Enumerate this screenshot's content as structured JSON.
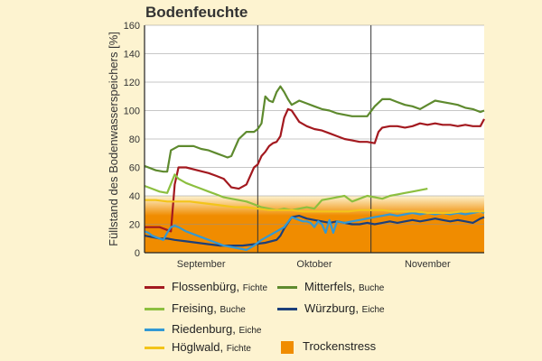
{
  "chart_data": {
    "type": "line",
    "title": "Bodenfeuchte",
    "ylabel": "Füllstand des Bodenwasserspeichers [%]",
    "xlabel": "",
    "ylim": [
      0,
      160
    ],
    "yticks": [
      "0",
      "20",
      "40",
      "60",
      "80",
      "100",
      "120",
      "140",
      "160"
    ],
    "months": [
      "September",
      "Oktober",
      "November"
    ],
    "stress_band": {
      "label": "Trockenstress",
      "low": 0,
      "high": 40,
      "color": "#f08c00"
    },
    "x_range": [
      1,
      91
    ],
    "series": [
      {
        "name": "Flossenbürg",
        "species": "Fichte",
        "color": "#a3191f",
        "x": [
          1,
          5,
          7,
          8,
          9,
          10,
          12,
          15,
          18,
          20,
          22,
          24,
          26,
          28,
          30,
          31,
          32,
          33,
          34,
          35,
          36,
          37,
          38,
          39,
          40,
          42,
          44,
          46,
          48,
          50,
          52,
          54,
          56,
          58,
          60,
          62,
          63,
          64,
          66,
          68,
          70,
          72,
          74,
          76,
          78,
          80,
          82,
          84,
          86,
          88,
          90,
          91
        ],
        "values": [
          18,
          18,
          16,
          15,
          48,
          60,
          60,
          58,
          56,
          54,
          52,
          46,
          45,
          48,
          60,
          62,
          68,
          71,
          75,
          77,
          78,
          82,
          95,
          101,
          100,
          92,
          89,
          87,
          86,
          84,
          82,
          80,
          79,
          78,
          78,
          77,
          85,
          88,
          89,
          89,
          88,
          89,
          91,
          90,
          91,
          90,
          90,
          89,
          90,
          89,
          89,
          94
        ]
      },
      {
        "name": "Mitterfels",
        "species": "Buche",
        "color": "#5e8a2e",
        "x": [
          1,
          4,
          6,
          7,
          8,
          10,
          12,
          14,
          16,
          18,
          20,
          22,
          23,
          24,
          26,
          28,
          30,
          31,
          32,
          33,
          34,
          35,
          36,
          37,
          38,
          39,
          40,
          42,
          44,
          46,
          48,
          50,
          52,
          54,
          56,
          58,
          60,
          62,
          64,
          66,
          68,
          70,
          72,
          74,
          76,
          78,
          80,
          82,
          84,
          86,
          88,
          90,
          91
        ],
        "values": [
          61,
          58,
          57,
          57,
          72,
          75,
          75,
          75,
          73,
          72,
          70,
          68,
          67,
          68,
          80,
          85,
          85,
          87,
          91,
          110,
          107,
          106,
          113,
          117,
          113,
          108,
          104,
          107,
          105,
          103,
          101,
          100,
          98,
          97,
          96,
          96,
          96,
          103,
          108,
          108,
          106,
          104,
          103,
          101,
          104,
          107,
          106,
          105,
          104,
          102,
          101,
          99,
          100
        ]
      },
      {
        "name": "Freising",
        "species": "Buche",
        "color": "#8cbf3f",
        "x": [
          1,
          3,
          5,
          7,
          9,
          10,
          12,
          14,
          16,
          18,
          20,
          22,
          24,
          26,
          28,
          30,
          32,
          34,
          36,
          38,
          40,
          42,
          44,
          46,
          48,
          50,
          52,
          54,
          56,
          58,
          60,
          62,
          64,
          66,
          68,
          70,
          72,
          74,
          76
        ],
        "values": [
          47,
          45,
          43,
          42,
          55,
          52,
          49,
          47,
          45,
          43,
          41,
          39,
          38,
          37,
          36,
          34,
          32,
          31,
          30,
          31,
          30,
          31,
          32,
          31,
          37,
          38,
          39,
          40,
          36,
          38,
          40,
          39,
          38,
          40,
          41,
          42,
          43,
          44,
          45
        ]
      },
      {
        "name": "Würzburg",
        "species": "Eiche",
        "color": "#1c3f7a",
        "x": [
          1,
          3,
          5,
          7,
          9,
          12,
          15,
          18,
          21,
          24,
          27,
          30,
          33,
          36,
          37,
          38,
          40,
          42,
          44,
          46,
          48,
          50,
          52,
          54,
          56,
          58,
          60,
          62,
          64,
          66,
          68,
          70,
          72,
          74,
          76,
          78,
          80,
          82,
          84,
          86,
          88,
          90,
          91
        ],
        "values": [
          12,
          11,
          10,
          10,
          9,
          8,
          7,
          6,
          5,
          5,
          5,
          6,
          7,
          9,
          12,
          17,
          25,
          26,
          24,
          23,
          22,
          21,
          22,
          21,
          20,
          20,
          21,
          20,
          21,
          22,
          21,
          22,
          23,
          22,
          23,
          24,
          23,
          22,
          23,
          22,
          21,
          24,
          25
        ]
      },
      {
        "name": "Riedenburg",
        "species": "Eiche",
        "color": "#3399d4",
        "x": [
          1,
          2,
          3,
          4,
          5,
          6,
          7,
          8,
          9,
          10,
          12,
          14,
          16,
          18,
          20,
          22,
          24,
          26,
          28,
          30,
          32,
          34,
          36,
          38,
          40,
          41,
          42,
          43,
          44,
          45,
          46,
          47,
          48,
          49,
          50,
          51,
          52,
          54,
          56,
          58,
          60,
          62,
          64,
          66,
          68,
          70,
          72,
          74,
          76,
          78,
          80,
          82,
          84,
          86,
          88,
          90,
          91
        ],
        "values": [
          15,
          14,
          12,
          11,
          10,
          9,
          14,
          18,
          19,
          18,
          15,
          13,
          11,
          9,
          7,
          5,
          4,
          3,
          2,
          5,
          9,
          12,
          15,
          18,
          25,
          24,
          23,
          22,
          22,
          21,
          18,
          22,
          20,
          14,
          23,
          14,
          22,
          21,
          22,
          23,
          24,
          25,
          26,
          27,
          26,
          27,
          28,
          27,
          28,
          27,
          28,
          27,
          28,
          27,
          28,
          29,
          28
        ]
      },
      {
        "name": "Höglwald",
        "species": "Fichte",
        "color": "#f3c41a",
        "x": [
          1,
          4,
          7,
          10,
          13,
          16,
          19,
          22,
          25,
          28,
          31,
          34,
          37,
          40,
          43,
          46,
          49,
          52,
          55,
          58,
          61,
          64,
          67,
          70,
          73,
          76,
          79,
          82,
          85,
          88,
          91
        ],
        "values": [
          37,
          37,
          36,
          36,
          36,
          35,
          34,
          33,
          32,
          32,
          31,
          30,
          30,
          30,
          29,
          29,
          29,
          29,
          29,
          30,
          30,
          30,
          29,
          29,
          29,
          28,
          28,
          28,
          29,
          29,
          29
        ]
      }
    ]
  }
}
